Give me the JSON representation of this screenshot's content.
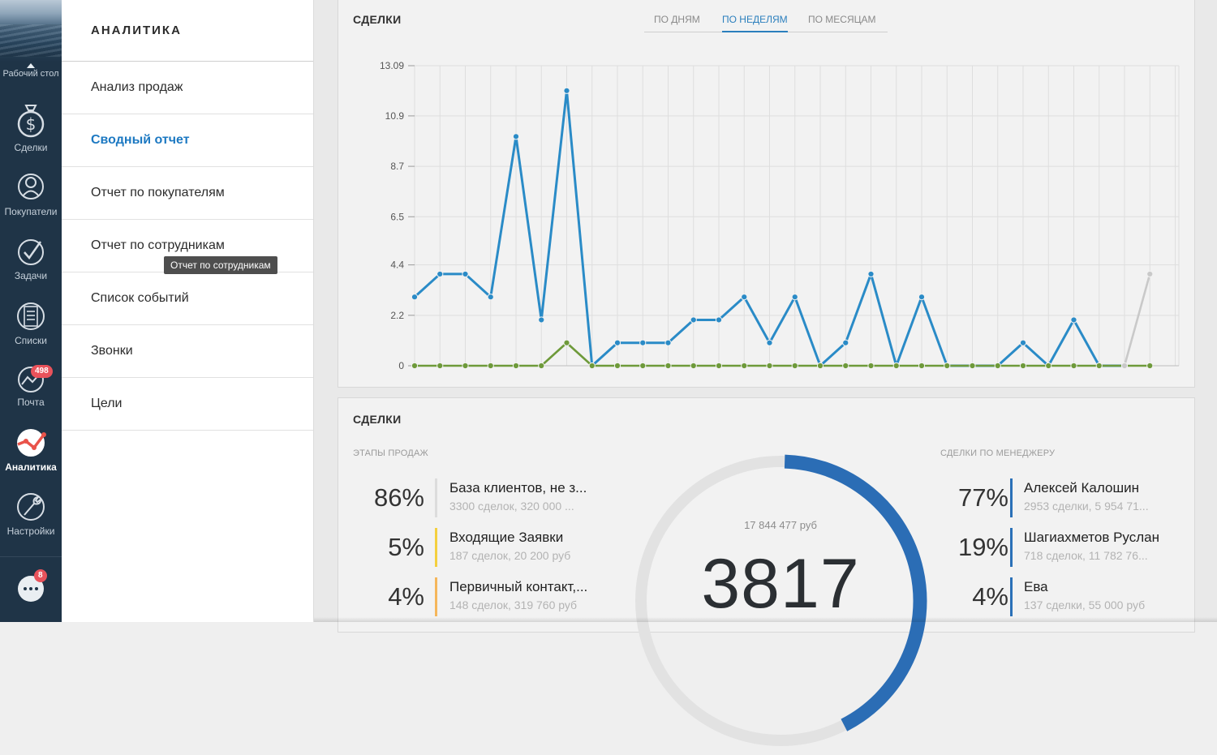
{
  "rail": {
    "desk_label": "Рабочий стол",
    "items": [
      {
        "label": "Сделки",
        "icon": "dollar-icon"
      },
      {
        "label": "Покупатели",
        "icon": "users-icon"
      },
      {
        "label": "Задачи",
        "icon": "check-icon"
      },
      {
        "label": "Списки",
        "icon": "list-icon"
      },
      {
        "label": "Почта",
        "icon": "mail-icon",
        "badge": "498"
      },
      {
        "label": "Аналитика",
        "icon": "analytics-icon",
        "active": true
      },
      {
        "label": "Настройки",
        "icon": "wrench-icon"
      }
    ],
    "chat_badge": "8"
  },
  "menu": {
    "title": "АНАЛИТИКА",
    "items": [
      {
        "label": "Анализ продаж"
      },
      {
        "label": "Сводный отчет",
        "active": true
      },
      {
        "label": "Отчет по покупателям"
      },
      {
        "label": "Отчет по сотрудникам"
      },
      {
        "label": "Список событий"
      },
      {
        "label": "Звонки"
      },
      {
        "label": "Цели"
      }
    ],
    "tooltip": "Отчет по сотрудникам"
  },
  "deals_chart": {
    "title": "СДЕЛКИ",
    "tabs": [
      "ПО ДНЯМ",
      "ПО НЕДЕЛЯМ",
      "ПО МЕСЯЦАМ"
    ],
    "active_tab": "ПО НЕДЕЛЯМ"
  },
  "chart_data": {
    "type": "line",
    "title": "СДЕЛКИ",
    "y_ticks": [
      "0",
      "2.2",
      "4.4",
      "6.5",
      "8.7",
      "10.9",
      "13.09"
    ],
    "ylim": [
      0,
      13.09
    ],
    "grid": true,
    "series": [
      {
        "color": "#2a8bc7",
        "values": [
          3,
          4,
          4,
          3,
          10,
          2,
          12,
          0,
          1,
          1,
          1,
          2,
          2,
          3,
          1,
          3,
          0,
          1,
          4,
          0,
          3,
          0,
          0,
          0,
          1,
          0,
          2,
          0,
          0
        ]
      },
      {
        "color": "#6e9a3a",
        "values": [
          0,
          0,
          0,
          0,
          0,
          0,
          1,
          0,
          0,
          0,
          0,
          0,
          0,
          0,
          0,
          0,
          0,
          0,
          0,
          0,
          0,
          0,
          0,
          0,
          0,
          0,
          0,
          0,
          0,
          0
        ]
      },
      {
        "color": "#c9c9c9",
        "values": [
          null,
          null,
          null,
          null,
          null,
          null,
          null,
          null,
          null,
          null,
          null,
          null,
          null,
          null,
          null,
          null,
          null,
          null,
          null,
          null,
          null,
          null,
          null,
          null,
          null,
          null,
          null,
          null,
          0,
          4
        ]
      }
    ]
  },
  "summary": {
    "title": "СДЕЛКИ",
    "stages_heading": "ЭТАПЫ ПРОДАЖ",
    "managers_heading": "СДЕЛКИ ПО МЕНЕДЖЕРУ",
    "stages": [
      {
        "pct": "86%",
        "name": "База клиентов, не з...",
        "meta": "3300 сделок, 320 000 ...",
        "color": "#dcdcdc"
      },
      {
        "pct": "5%",
        "name": "Входящие Заявки",
        "meta": "187 сделок, 20 200 руб",
        "color": "#f4d03f"
      },
      {
        "pct": "4%",
        "name": "Первичный контакт,...",
        "meta": "148 сделок, 319 760 руб",
        "color": "#f5b65b"
      }
    ],
    "managers": [
      {
        "pct": "77%",
        "name": "Алексей Калошин",
        "meta": "2953 сделки, 5 954 71..."
      },
      {
        "pct": "19%",
        "name": "Шагиахметов Руслан",
        "meta": "718 сделок, 11 782 76..."
      },
      {
        "pct": "4%",
        "name": "Ева",
        "meta": "137 сделки, 55 000 руб"
      }
    ],
    "donut": {
      "sum": "17 844 477 руб",
      "total": "3817",
      "fill_fraction": 0.42,
      "fill_color": "#2b6db5",
      "track_color": "#e2e2e2"
    }
  }
}
